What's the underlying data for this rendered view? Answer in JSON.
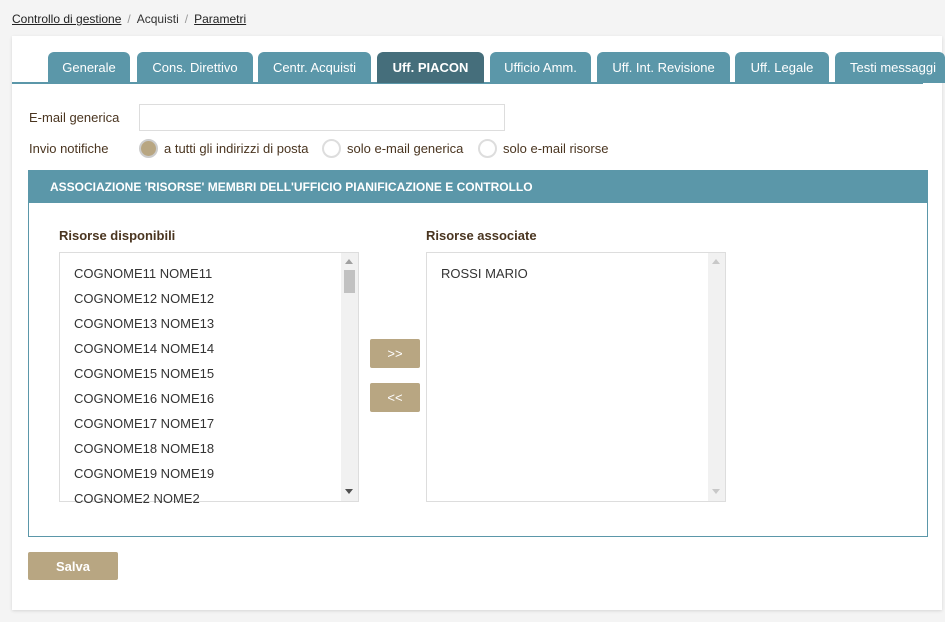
{
  "breadcrumb": {
    "items": [
      "Controllo di gestione",
      "Acquisti",
      "Parametri"
    ]
  },
  "tabs": [
    "Generale",
    "Cons. Direttivo",
    "Centr. Acquisti",
    "Uff. PIACON",
    "Ufficio Amm.",
    "Uff. Int. Revisione",
    "Uff. Legale",
    "Testi messaggi"
  ],
  "active_tab": "Uff. PIACON",
  "form": {
    "email_label": "E-mail generica",
    "email_value": "",
    "notify_label": "Invio notifiche",
    "notify_options": [
      "a tutti gli indirizzi di posta",
      "solo e-mail generica",
      "solo e-mail risorse"
    ],
    "notify_selected": "a tutti gli indirizzi di posta"
  },
  "section": {
    "title": "ASSOCIAZIONE 'RISORSE' MEMBRI DELL'UFFICIO PIANIFICAZIONE E CONTROLLO",
    "available_label": "Risorse disponibili",
    "associated_label": "Risorse associate",
    "available": [
      "COGNOME11 NOME11",
      "COGNOME12 NOME12",
      "COGNOME13 NOME13",
      "COGNOME14 NOME14",
      "COGNOME15 NOME15",
      "COGNOME16 NOME16",
      "COGNOME17 NOME17",
      "COGNOME18 NOME18",
      "COGNOME19 NOME19",
      "COGNOME2 NOME2"
    ],
    "associated": [
      "ROSSI MARIO"
    ],
    "add_label": ">>",
    "remove_label": "<<"
  },
  "save_label": "Salva",
  "colors": {
    "tab": "#5b97a9",
    "tab_active": "#456e7b",
    "button": "#b8a682"
  }
}
